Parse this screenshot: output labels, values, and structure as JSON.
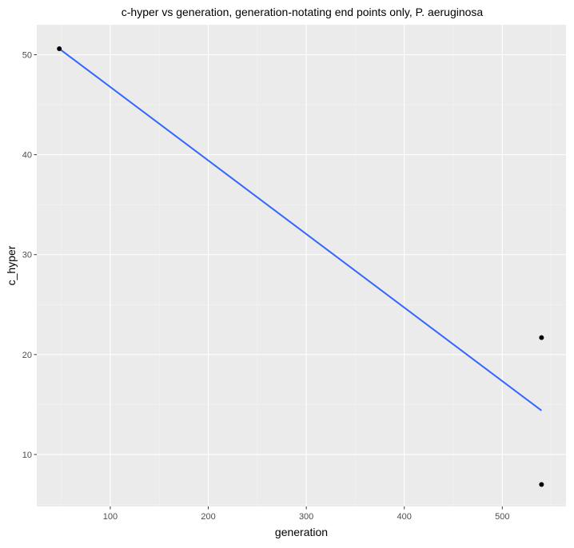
{
  "chart_data": {
    "type": "scatter",
    "title": "c-hyper vs generation, generation-notating end points only, P. aeruginosa",
    "xlabel": "generation",
    "ylabel": "c_hyper",
    "xlim": [
      25,
      565
    ],
    "ylim": [
      4.8,
      53
    ],
    "x_ticks": [
      100,
      200,
      300,
      400,
      500
    ],
    "y_ticks": [
      10,
      20,
      30,
      40,
      50
    ],
    "grid": true,
    "points": [
      {
        "x": 48,
        "y": 50.6
      },
      {
        "x": 540,
        "y": 21.7
      },
      {
        "x": 540,
        "y": 7.0
      }
    ],
    "trend_line": {
      "x": [
        48,
        540
      ],
      "y": [
        50.6,
        14.4
      ]
    },
    "colors": {
      "panel_background": "#ebebeb",
      "grid_major": "#ffffff",
      "grid_minor": "#f5f5f5",
      "points": "#000000",
      "trend_line": "#3366ff"
    }
  }
}
